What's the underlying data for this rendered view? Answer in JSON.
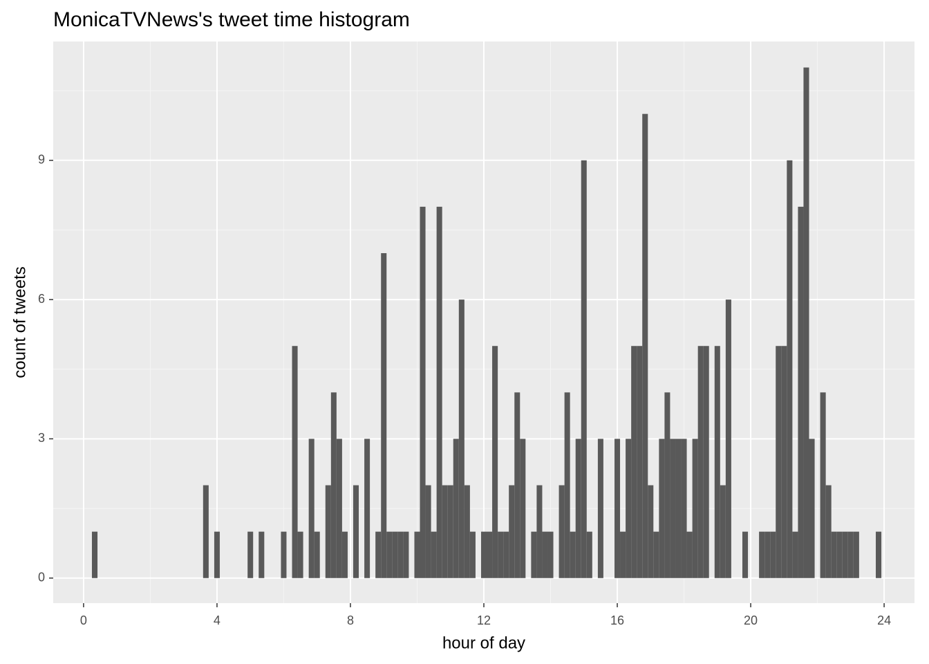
{
  "chart_data": {
    "type": "histogram",
    "title": "MonicaTVNews's tweet time histogram",
    "x_label": "hour of day",
    "y_label": "count of tweets",
    "color": "#595959",
    "bins": [
      0.25,
      0.417,
      0.583,
      0.75,
      0.917,
      1.083,
      1.25,
      1.417,
      1.583,
      1.75,
      1.917,
      2.083,
      2.25,
      2.417,
      2.583,
      2.75,
      2.917,
      3.083,
      3.25,
      3.417,
      3.583,
      3.75,
      3.917,
      4.083,
      4.25,
      4.417,
      4.583,
      4.75,
      4.917,
      5.083,
      5.25,
      5.417,
      5.583,
      5.75,
      5.917,
      6.083,
      6.25,
      6.417,
      6.583,
      6.75,
      6.917,
      7.083,
      7.25,
      7.417,
      7.583,
      7.75,
      7.917,
      8.083,
      8.25,
      8.417,
      8.583,
      8.75,
      8.917,
      9.083,
      9.25,
      9.417,
      9.583,
      9.75,
      9.917,
      10.083,
      10.25,
      10.417,
      10.583,
      10.75,
      10.917,
      11.083,
      11.25,
      11.417,
      11.583,
      11.75,
      11.917,
      12.083,
      12.25,
      12.417,
      12.583,
      12.75,
      12.917,
      13.083,
      13.25,
      13.417,
      13.583,
      13.75,
      13.917,
      14.083,
      14.25,
      14.417,
      14.583,
      14.75,
      14.917,
      15.083,
      15.25,
      15.417,
      15.583,
      15.75,
      15.917,
      16.083,
      16.25,
      16.417,
      16.583,
      16.75,
      16.917,
      17.083,
      17.25,
      17.417,
      17.583,
      17.75,
      17.917,
      18.083,
      18.25,
      18.417,
      18.583,
      18.75,
      18.917,
      19.083,
      19.25,
      19.417,
      19.583,
      19.75,
      19.917,
      20.083,
      20.25,
      20.417,
      20.583,
      20.75,
      20.917,
      21.083,
      21.25,
      21.417,
      21.583,
      21.75,
      21.917,
      22.083,
      22.25,
      22.417,
      22.583,
      22.75,
      22.917,
      23.083,
      23.25,
      23.417,
      23.583,
      23.75,
      23.917,
      24.083
    ],
    "counts": [
      1,
      0,
      0,
      0,
      0,
      0,
      0,
      0,
      0,
      0,
      0,
      0,
      0,
      0,
      0,
      0,
      0,
      0,
      0,
      0,
      2,
      0,
      1,
      0,
      0,
      0,
      0,
      0,
      1,
      0,
      1,
      0,
      0,
      0,
      1,
      0,
      5,
      1,
      0,
      3,
      1,
      0,
      2,
      4,
      3,
      1,
      0,
      2,
      0,
      3,
      0,
      1,
      7,
      1,
      1,
      1,
      1,
      0,
      1,
      8,
      2,
      1,
      8,
      2,
      2,
      3,
      6,
      2,
      1,
      0,
      1,
      1,
      5,
      1,
      1,
      2,
      4,
      3,
      0,
      1,
      2,
      1,
      1,
      0,
      2,
      4,
      1,
      3,
      9,
      1,
      0,
      3,
      0,
      0,
      3,
      1,
      3,
      5,
      5,
      10,
      2,
      1,
      3,
      4,
      3,
      3,
      3,
      1,
      3,
      5,
      5,
      0,
      5,
      2,
      6,
      0,
      0,
      1,
      0,
      0,
      1,
      1,
      1,
      5,
      5,
      9,
      1,
      8,
      11,
      3,
      0,
      4,
      2,
      1,
      1,
      1,
      1,
      1,
      0,
      0,
      0,
      1,
      0
    ],
    "xlim": [
      -0.91,
      24.91
    ],
    "ylim": [
      -0.54,
      11.56
    ],
    "xticks": [
      0,
      4,
      8,
      12,
      16,
      20,
      24
    ],
    "yticks": [
      0,
      3,
      6,
      9
    ],
    "grid": true
  }
}
